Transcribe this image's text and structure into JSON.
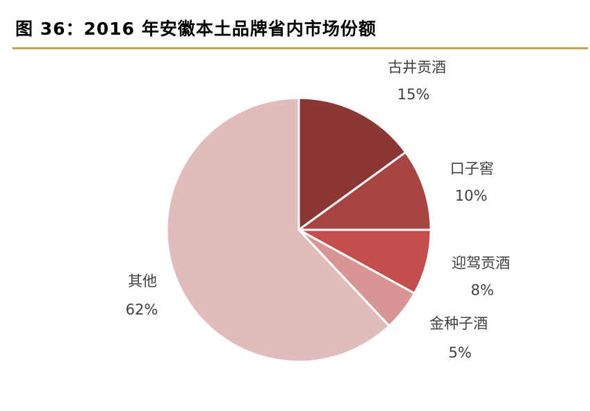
{
  "figure": {
    "title": "图 36：2016 年安徽本土品牌省内市场份额",
    "rule_color": "#C9A24D"
  },
  "chart_data": {
    "type": "pie",
    "title": "图 36：2016 年安徽本土品牌省内市场份额",
    "slices": [
      {
        "label": "古井贡酒",
        "value": 15,
        "value_label": "15%",
        "color": "#8B3834"
      },
      {
        "label": "口子窖",
        "value": 10,
        "value_label": "10%",
        "color": "#A74543"
      },
      {
        "label": "迎驾贡酒",
        "value": 8,
        "value_label": "8%",
        "color": "#C24F4D"
      },
      {
        "label": "金种子酒",
        "value": 5,
        "value_label": "5%",
        "color": "#D99494"
      },
      {
        "label": "其他",
        "value": 62,
        "value_label": "62%",
        "color": "#E2BCBC"
      }
    ],
    "start_angle": "12 o'clock",
    "direction": "clockwise",
    "legend": "none"
  }
}
